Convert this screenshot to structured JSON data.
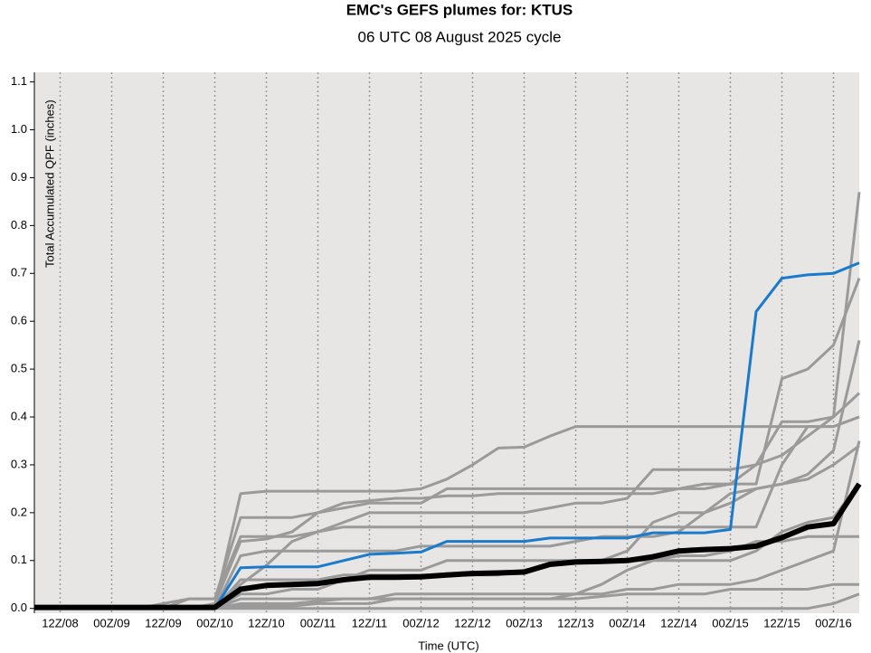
{
  "chart_data": {
    "type": "line",
    "title": "EMC's GEFS plumes for: KTUS",
    "subtitle": "06 UTC 08 August 2025 cycle",
    "x_label": "Time (UTC)",
    "y_label": "Total Accumulated QPF (inches)",
    "x": [
      0,
      6,
      12,
      18,
      24,
      30,
      36,
      42,
      48,
      54,
      60,
      66,
      72,
      78,
      84,
      90,
      96,
      102,
      108,
      114,
      120,
      126,
      132,
      138,
      144,
      150,
      156,
      162,
      168,
      174,
      180,
      186,
      192
    ],
    "xlim": [
      0,
      192
    ],
    "xticks": [
      {
        "value": 6,
        "label": "12Z/08"
      },
      {
        "value": 18,
        "label": "00Z/09"
      },
      {
        "value": 30,
        "label": "12Z/09"
      },
      {
        "value": 42,
        "label": "00Z/10"
      },
      {
        "value": 54,
        "label": "12Z/10"
      },
      {
        "value": 66,
        "label": "00Z/11"
      },
      {
        "value": 78,
        "label": "12Z/11"
      },
      {
        "value": 90,
        "label": "00Z/12"
      },
      {
        "value": 102,
        "label": "12Z/12"
      },
      {
        "value": 114,
        "label": "00Z/13"
      },
      {
        "value": 126,
        "label": "12Z/13"
      },
      {
        "value": 138,
        "label": "00Z/14"
      },
      {
        "value": 150,
        "label": "12Z/14"
      },
      {
        "value": 162,
        "label": "00Z/15"
      },
      {
        "value": 174,
        "label": "12Z/15"
      },
      {
        "value": 186,
        "label": "00Z/16"
      }
    ],
    "ylim": [
      -0.01,
      1.12
    ],
    "yticks": [
      {
        "value": 0,
        "label": "0.0"
      },
      0.1,
      0.2,
      0.3,
      0.4,
      0.5,
      0.6,
      0.7,
      0.8,
      0.9,
      {
        "value": 1,
        "label": "1.0"
      },
      1.1
    ],
    "grid": true,
    "series": [
      {
        "color": "#9a9a9a",
        "width": 3,
        "values": [
          0,
          0,
          0,
          0,
          0,
          0,
          0,
          0.005,
          0.24,
          0.245,
          0.245,
          0.245,
          0.245,
          0.245,
          0.245,
          0.25,
          0.27,
          0.3,
          0.335,
          0.337,
          0.36,
          0.38,
          0.38,
          0.38,
          0.38,
          0.38,
          0.38,
          0.38,
          0.38,
          0.38,
          0.38,
          0.38,
          0.4
        ]
      },
      {
        "color": "#9a9a9a",
        "width": 3,
        "values": [
          0,
          0,
          0,
          0,
          0,
          0,
          0.02,
          0.02,
          0.19,
          0.19,
          0.19,
          0.2,
          0.21,
          0.22,
          0.22,
          0.22,
          0.25,
          0.25,
          0.25,
          0.25,
          0.25,
          0.25,
          0.25,
          0.25,
          0.25,
          0.25,
          0.26,
          0.26,
          0.26,
          0.48,
          0.5,
          0.55,
          0.69
        ]
      },
      {
        "color": "#9a9a9a",
        "width": 3,
        "values": [
          0,
          0,
          0,
          0,
          0,
          0,
          0,
          0.01,
          0.14,
          0.145,
          0.16,
          0.2,
          0.22,
          0.225,
          0.23,
          0.23,
          0.235,
          0.235,
          0.24,
          0.24,
          0.24,
          0.24,
          0.24,
          0.24,
          0.24,
          0.25,
          0.25,
          0.26,
          0.3,
          0.39,
          0.39,
          0.4,
          0.87
        ]
      },
      {
        "color": "#9a9a9a",
        "width": 3,
        "values": [
          0,
          0,
          0,
          0,
          0,
          0,
          0,
          0,
          0.05,
          0.09,
          0.14,
          0.16,
          0.18,
          0.2,
          0.2,
          0.2,
          0.2,
          0.2,
          0.2,
          0.2,
          0.21,
          0.22,
          0.22,
          0.23,
          0.29,
          0.29,
          0.29,
          0.29,
          0.3,
          0.32,
          0.36,
          0.4,
          0.45
        ]
      },
      {
        "color": "#9a9a9a",
        "width": 3,
        "values": [
          0,
          0,
          0,
          0,
          0,
          0,
          0,
          0,
          0.03,
          0.03,
          0.04,
          0.04,
          0.06,
          0.08,
          0.08,
          0.08,
          0.1,
          0.1,
          0.1,
          0.1,
          0.1,
          0.1,
          0.1,
          0.12,
          0.18,
          0.2,
          0.2,
          0.22,
          0.25,
          0.26,
          0.28,
          0.33,
          0.56
        ]
      },
      {
        "color": "#9a9a9a",
        "width": 3,
        "values": [
          0,
          0,
          0,
          0,
          0,
          0,
          0,
          0,
          0.02,
          0.02,
          0.02,
          0.02,
          0.02,
          0.02,
          0.03,
          0.03,
          0.03,
          0.03,
          0.03,
          0.03,
          0.03,
          0.03,
          0.03,
          0.04,
          0.04,
          0.05,
          0.05,
          0.05,
          0.06,
          0.08,
          0.1,
          0.12,
          0.35
        ]
      },
      {
        "color": "#9a9a9a",
        "width": 3,
        "values": [
          0,
          0,
          0,
          0,
          0,
          0,
          0,
          0,
          0.01,
          0.01,
          0.01,
          0.015,
          0.02,
          0.02,
          0.02,
          0.02,
          0.02,
          0.02,
          0.02,
          0.02,
          0.02,
          0.02,
          0.025,
          0.03,
          0.03,
          0.03,
          0.03,
          0.04,
          0.04,
          0.04,
          0.04,
          0.05,
          0.05
        ]
      },
      {
        "color": "#9a9a9a",
        "width": 3,
        "values": [
          0,
          0,
          0,
          0,
          0,
          0,
          0,
          0,
          0.06,
          0.06,
          0.06,
          0.06,
          0.07,
          0.07,
          0.07,
          0.07,
          0.07,
          0.07,
          0.07,
          0.08,
          0.09,
          0.1,
          0.1,
          0.1,
          0.1,
          0.11,
          0.11,
          0.12,
          0.14,
          0.14,
          0.15,
          0.15,
          0.15
        ]
      },
      {
        "color": "#9a9a9a",
        "width": 3,
        "values": [
          0,
          0,
          0,
          0,
          0,
          0,
          0,
          0,
          0.005,
          0.005,
          0.005,
          0.01,
          0.01,
          0.01,
          0.02,
          0.02,
          0.02,
          0.02,
          0.02,
          0.02,
          0.02,
          0.03,
          0.05,
          0.08,
          0.1,
          0.1,
          0.1,
          0.1,
          0.12,
          0.16,
          0.18,
          0.19,
          0.26
        ]
      },
      {
        "color": "#9a9a9a",
        "width": 3,
        "values": [
          0,
          0,
          0,
          0,
          0,
          0.01,
          0.02,
          0.02,
          0.15,
          0.15,
          0.15,
          0.16,
          0.17,
          0.17,
          0.17,
          0.17,
          0.17,
          0.17,
          0.17,
          0.17,
          0.17,
          0.17,
          0.17,
          0.17,
          0.17,
          0.17,
          0.17,
          0.17,
          0.17,
          0.3,
          0.38,
          0.38,
          0.4
        ]
      },
      {
        "color": "#9a9a9a",
        "width": 3,
        "values": [
          0,
          0,
          0,
          0,
          0,
          0,
          0,
          0,
          0,
          0,
          0,
          0,
          0,
          0,
          0,
          0,
          0,
          0,
          0,
          0,
          0,
          0,
          0,
          0,
          0,
          0,
          0,
          0,
          0,
          0,
          0,
          0.01,
          0.03
        ]
      },
      {
        "color": "#9a9a9a",
        "width": 3,
        "values": [
          0,
          0,
          0,
          0,
          0,
          0,
          0,
          0,
          0.11,
          0.12,
          0.12,
          0.12,
          0.12,
          0.12,
          0.12,
          0.13,
          0.13,
          0.13,
          0.13,
          0.13,
          0.13,
          0.14,
          0.15,
          0.15,
          0.15,
          0.16,
          0.2,
          0.24,
          0.25,
          0.26,
          0.27,
          0.3,
          0.34
        ]
      },
      {
        "color": "#1a7acc",
        "width": 3,
        "values": [
          0,
          0,
          0,
          0,
          0,
          0,
          0,
          0,
          0.085,
          0.087,
          0.087,
          0.087,
          0.1,
          0.113,
          0.115,
          0.118,
          0.14,
          0.14,
          0.14,
          0.14,
          0.147,
          0.147,
          0.147,
          0.147,
          0.158,
          0.158,
          0.158,
          0.165,
          0.62,
          0.69,
          0.697,
          0.7,
          0.722
        ]
      },
      {
        "color": "#000000",
        "width": 6,
        "values": [
          0.002,
          0.002,
          0.002,
          0.002,
          0.002,
          0.002,
          0.002,
          0.002,
          0.04,
          0.048,
          0.05,
          0.052,
          0.06,
          0.065,
          0.065,
          0.066,
          0.07,
          0.073,
          0.074,
          0.076,
          0.092,
          0.097,
          0.098,
          0.1,
          0.108,
          0.12,
          0.123,
          0.125,
          0.13,
          0.148,
          0.17,
          0.177,
          0.26
        ]
      }
    ]
  }
}
